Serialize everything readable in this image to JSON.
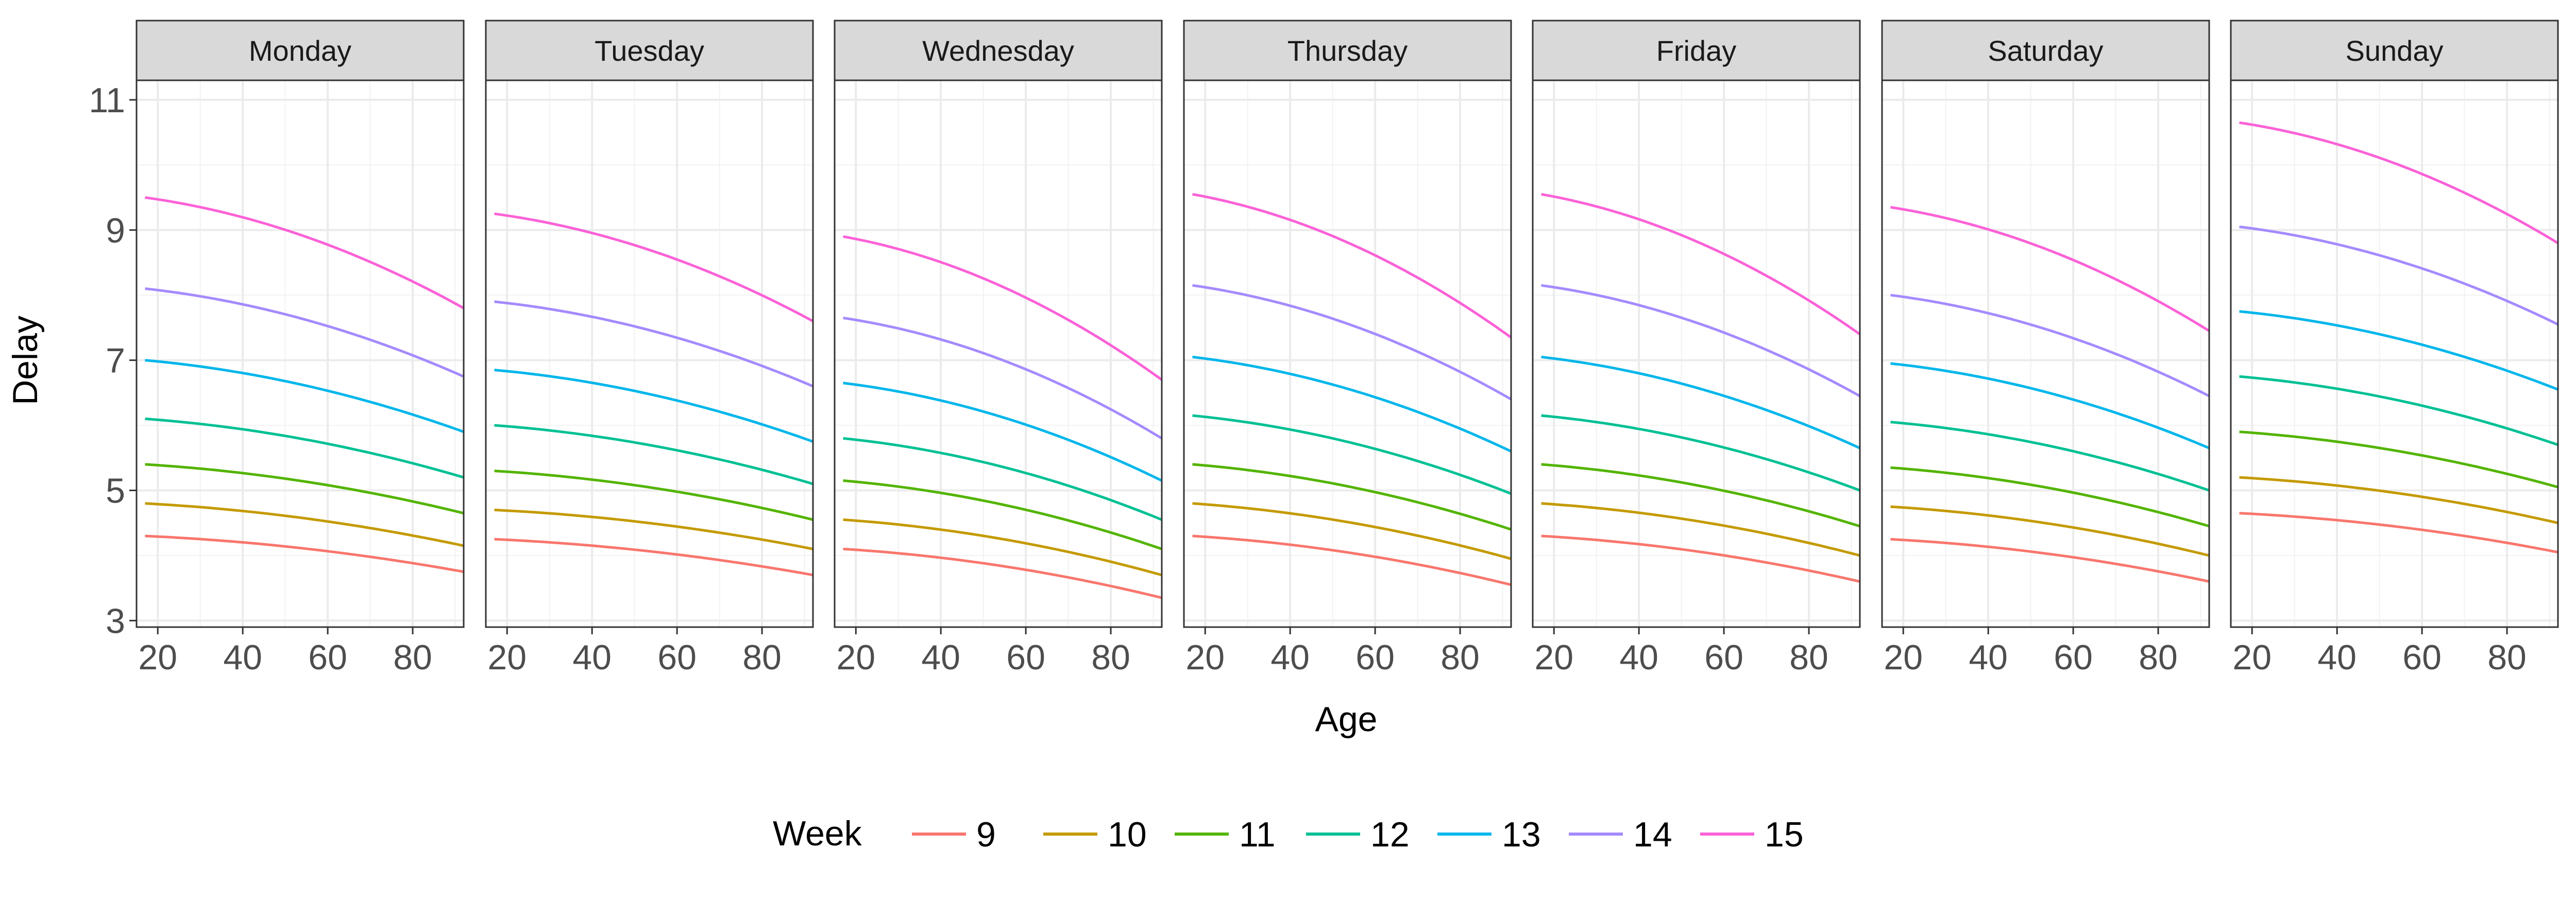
{
  "chart_data": {
    "type": "line",
    "facet_variable": "day",
    "facets": [
      "Monday",
      "Tuesday",
      "Wednesday",
      "Thursday",
      "Friday",
      "Saturday",
      "Sunday"
    ],
    "xlabel": "Age",
    "ylabel": "Delay",
    "xlim": [
      15,
      92
    ],
    "ylim": [
      2.9,
      11.3
    ],
    "x_ticks": [
      20,
      40,
      60,
      80
    ],
    "y_ticks": [
      3,
      5,
      7,
      9,
      11
    ],
    "grid": true,
    "x": [
      17,
      92
    ],
    "legend": {
      "title": "Week",
      "position": "bottom",
      "entries": [
        "9",
        "10",
        "11",
        "12",
        "13",
        "14",
        "15"
      ]
    },
    "series_colors": {
      "9": "#F8766D",
      "10": "#C49A00",
      "11": "#53B400",
      "12": "#00C094",
      "13": "#00B6EB",
      "14": "#A58AFF",
      "15": "#FB61D7"
    },
    "panels": [
      {
        "facet": "Monday",
        "series": [
          {
            "name": "9",
            "values": [
              4.3,
              3.75
            ]
          },
          {
            "name": "10",
            "values": [
              4.8,
              4.15
            ]
          },
          {
            "name": "11",
            "values": [
              5.4,
              4.65
            ]
          },
          {
            "name": "12",
            "values": [
              6.1,
              5.2
            ]
          },
          {
            "name": "13",
            "values": [
              7.0,
              5.9
            ]
          },
          {
            "name": "14",
            "values": [
              8.1,
              6.75
            ]
          },
          {
            "name": "15",
            "values": [
              9.5,
              7.8
            ]
          }
        ]
      },
      {
        "facet": "Tuesday",
        "series": [
          {
            "name": "9",
            "values": [
              4.25,
              3.7
            ]
          },
          {
            "name": "10",
            "values": [
              4.7,
              4.1
            ]
          },
          {
            "name": "11",
            "values": [
              5.3,
              4.55
            ]
          },
          {
            "name": "12",
            "values": [
              6.0,
              5.1
            ]
          },
          {
            "name": "13",
            "values": [
              6.85,
              5.75
            ]
          },
          {
            "name": "14",
            "values": [
              7.9,
              6.6
            ]
          },
          {
            "name": "15",
            "values": [
              9.25,
              7.6
            ]
          }
        ]
      },
      {
        "facet": "Wednesday",
        "series": [
          {
            "name": "9",
            "values": [
              4.1,
              3.35
            ]
          },
          {
            "name": "10",
            "values": [
              4.55,
              3.7
            ]
          },
          {
            "name": "11",
            "values": [
              5.15,
              4.1
            ]
          },
          {
            "name": "12",
            "values": [
              5.8,
              4.55
            ]
          },
          {
            "name": "13",
            "values": [
              6.65,
              5.15
            ]
          },
          {
            "name": "14",
            "values": [
              7.65,
              5.8
            ]
          },
          {
            "name": "15",
            "values": [
              8.9,
              6.7
            ]
          }
        ]
      },
      {
        "facet": "Thursday",
        "series": [
          {
            "name": "9",
            "values": [
              4.3,
              3.55
            ]
          },
          {
            "name": "10",
            "values": [
              4.8,
              3.95
            ]
          },
          {
            "name": "11",
            "values": [
              5.4,
              4.4
            ]
          },
          {
            "name": "12",
            "values": [
              6.15,
              4.95
            ]
          },
          {
            "name": "13",
            "values": [
              7.05,
              5.6
            ]
          },
          {
            "name": "14",
            "values": [
              8.15,
              6.4
            ]
          },
          {
            "name": "15",
            "values": [
              9.55,
              7.35
            ]
          }
        ]
      },
      {
        "facet": "Friday",
        "series": [
          {
            "name": "9",
            "values": [
              4.3,
              3.6
            ]
          },
          {
            "name": "10",
            "values": [
              4.8,
              4.0
            ]
          },
          {
            "name": "11",
            "values": [
              5.4,
              4.45
            ]
          },
          {
            "name": "12",
            "values": [
              6.15,
              5.0
            ]
          },
          {
            "name": "13",
            "values": [
              7.05,
              5.65
            ]
          },
          {
            "name": "14",
            "values": [
              8.15,
              6.45
            ]
          },
          {
            "name": "15",
            "values": [
              9.55,
              7.4
            ]
          }
        ]
      },
      {
        "facet": "Saturday",
        "series": [
          {
            "name": "9",
            "values": [
              4.25,
              3.6
            ]
          },
          {
            "name": "10",
            "values": [
              4.75,
              4.0
            ]
          },
          {
            "name": "11",
            "values": [
              5.35,
              4.45
            ]
          },
          {
            "name": "12",
            "values": [
              6.05,
              5.0
            ]
          },
          {
            "name": "13",
            "values": [
              6.95,
              5.65
            ]
          },
          {
            "name": "14",
            "values": [
              8.0,
              6.45
            ]
          },
          {
            "name": "15",
            "values": [
              9.35,
              7.45
            ]
          }
        ]
      },
      {
        "facet": "Sunday",
        "series": [
          {
            "name": "9",
            "values": [
              4.65,
              4.05
            ]
          },
          {
            "name": "10",
            "values": [
              5.2,
              4.5
            ]
          },
          {
            "name": "11",
            "values": [
              5.9,
              5.05
            ]
          },
          {
            "name": "12",
            "values": [
              6.75,
              5.7
            ]
          },
          {
            "name": "13",
            "values": [
              7.75,
              6.55
            ]
          },
          {
            "name": "14",
            "values": [
              9.05,
              7.55
            ]
          },
          {
            "name": "15",
            "values": [
              10.65,
              8.8
            ]
          }
        ]
      }
    ]
  }
}
